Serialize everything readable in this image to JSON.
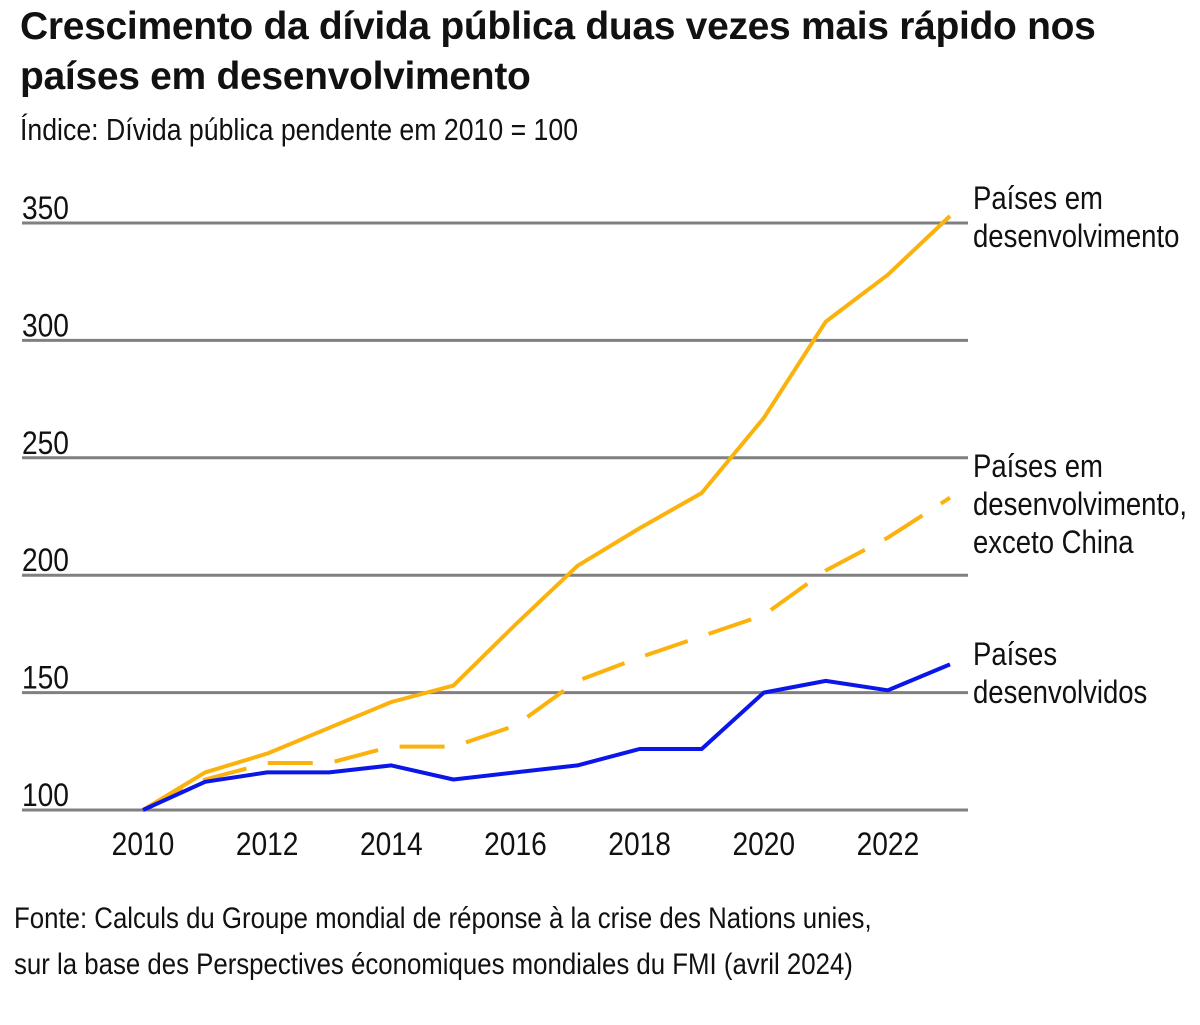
{
  "title": "Crescimento da dívida pública duas vezes mais rápido nos países em desenvolvimento",
  "subtitle": "Índice: Dívida pública pendente em 2010 = 100",
  "source": {
    "line1": "Fonte: Calculs du Groupe mondial de réponse à la crise des Nations unies,",
    "line2": "sur la base des Perspectives économiques mondiales du FMI (avril 2024)"
  },
  "chart_data": {
    "type": "line",
    "title": "Crescimento da dívida pública duas vezes mais rápido nos países em desenvolvimento",
    "subtitle": "Índice: Dívida pública pendente em 2010 = 100",
    "x": [
      2010,
      2011,
      2012,
      2013,
      2014,
      2015,
      2016,
      2017,
      2018,
      2019,
      2020,
      2021,
      2022,
      2023
    ],
    "xticks": [
      2010,
      2012,
      2014,
      2016,
      2018,
      2020,
      2022
    ],
    "ylim": [
      100,
      350
    ],
    "yticks": [
      100,
      150,
      200,
      250,
      300,
      350
    ],
    "grid": true,
    "series": [
      {
        "name": "Países em desenvolvimento",
        "label_lines": [
          "Países em",
          "desenvolvimento"
        ],
        "color": "#FBB20D",
        "dashed": false,
        "values": [
          100,
          116,
          124,
          135,
          146,
          153,
          179,
          204,
          220,
          235,
          267,
          308,
          328,
          353
        ]
      },
      {
        "name": "Países em desenvolvimento, exceto China",
        "label_lines": [
          "Países em",
          "desenvolvimento,",
          "exceto China"
        ],
        "color": "#FBB20D",
        "dashed": true,
        "values": [
          100,
          113,
          120,
          120,
          127,
          127,
          136,
          155,
          165,
          174,
          183,
          202,
          216,
          233
        ]
      },
      {
        "name": "Países desenvolvidos",
        "label_lines": [
          "Países",
          "desenvolvidos"
        ],
        "color": "#0A17E8",
        "dashed": false,
        "values": [
          100,
          112,
          116,
          116,
          119,
          113,
          116,
          119,
          126,
          126,
          150,
          155,
          151,
          162
        ]
      }
    ]
  }
}
